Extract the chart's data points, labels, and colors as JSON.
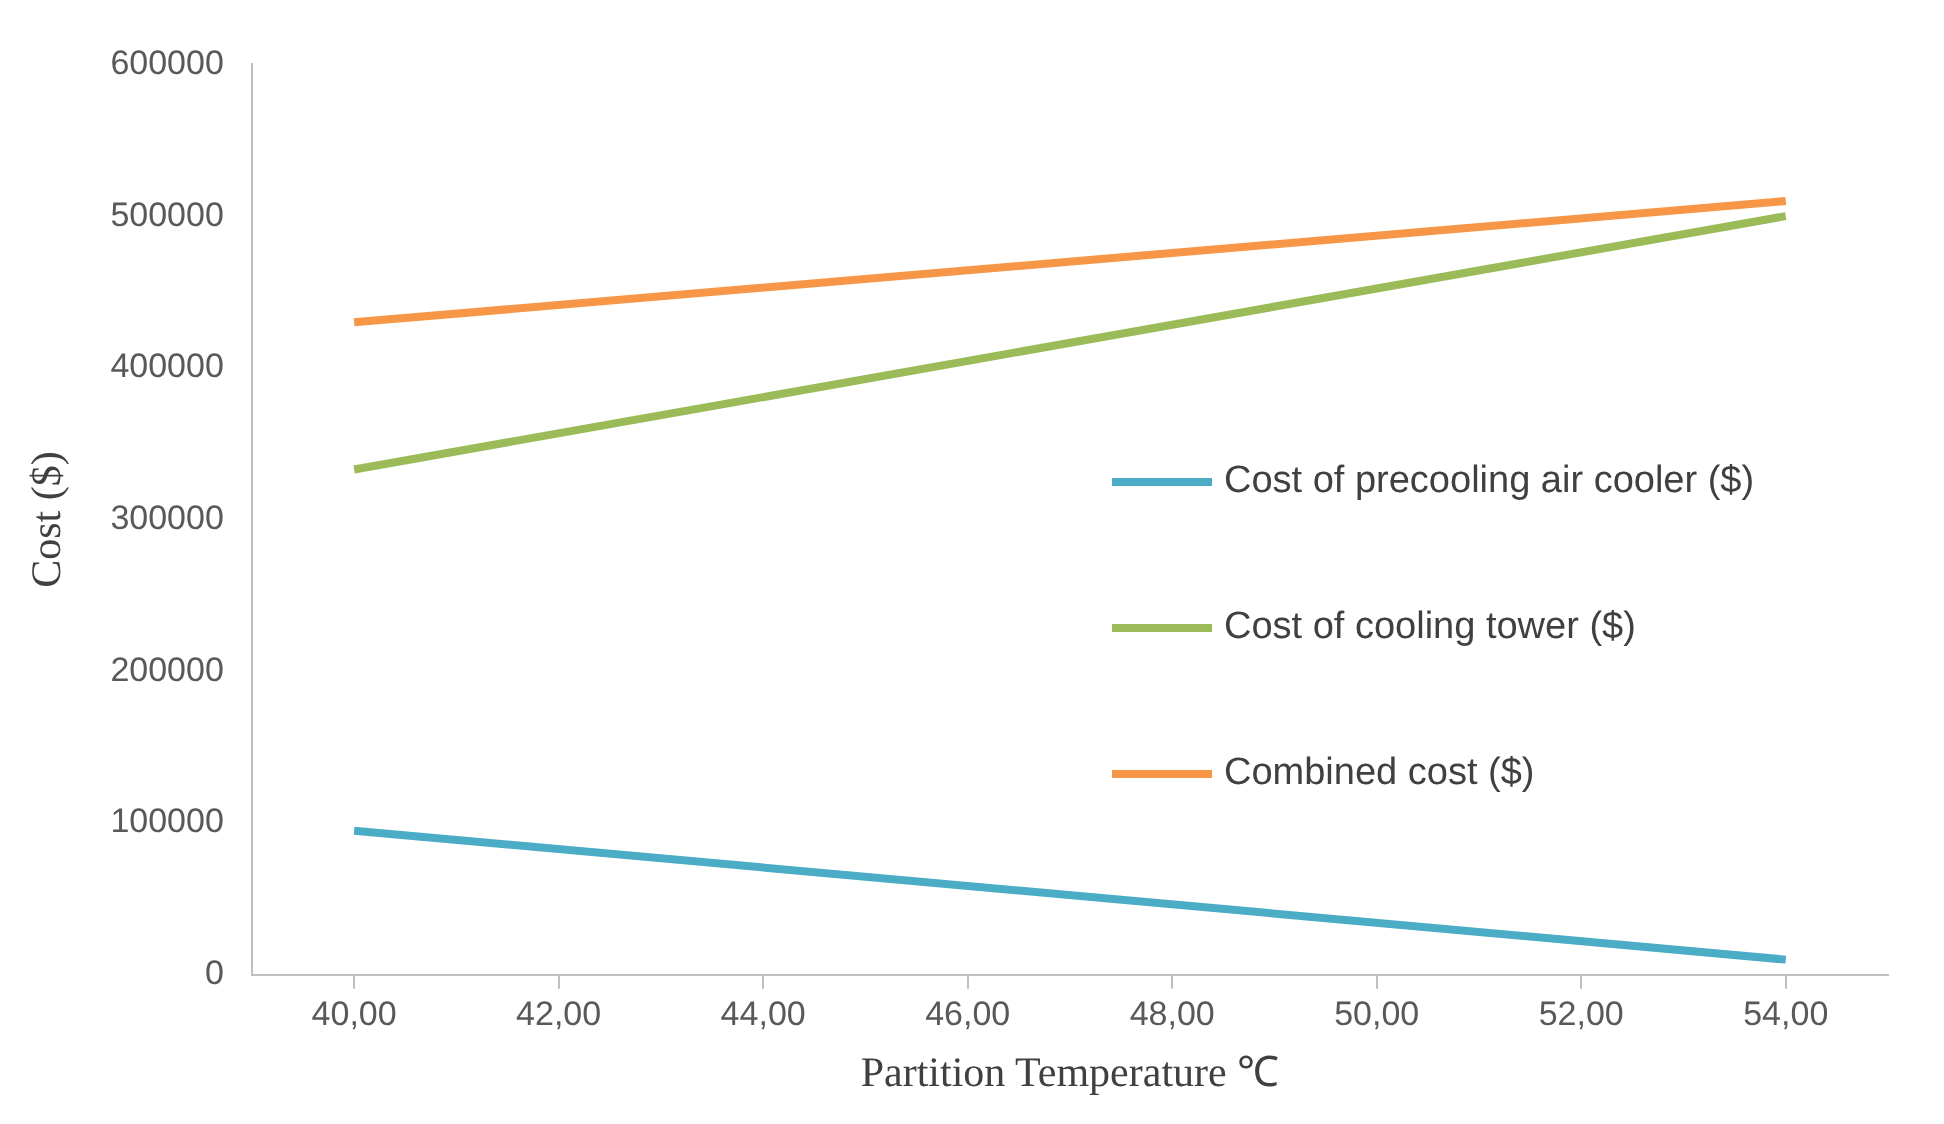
{
  "chart_data": {
    "type": "line",
    "xlabel": "Partition Temperature ℃",
    "ylabel": "Cost ($)",
    "x": [
      40,
      54
    ],
    "series": [
      {
        "name": "Cost of precooling air cooler ($)",
        "color": "#4bacc6",
        "values": [
          95000,
          10000
        ]
      },
      {
        "name": "Cost of cooling tower ($)",
        "color": "#9bbb59",
        "values": [
          333000,
          500000
        ]
      },
      {
        "name": "Combined cost ($)",
        "color": "#f79646",
        "values": [
          430000,
          510000
        ]
      }
    ],
    "xlim": [
      39,
      55
    ],
    "xticks": [
      {
        "value": 40,
        "label": "40,00"
      },
      {
        "value": 42,
        "label": "42,00"
      },
      {
        "value": 44,
        "label": "44,00"
      },
      {
        "value": 46,
        "label": "46,00"
      },
      {
        "value": 48,
        "label": "48,00"
      },
      {
        "value": 50,
        "label": "50,00"
      },
      {
        "value": 52,
        "label": "52,00"
      },
      {
        "value": 54,
        "label": "54,00"
      }
    ],
    "ylim": [
      0,
      600000
    ],
    "yticks": [
      0,
      100000,
      200000,
      300000,
      400000,
      500000,
      600000
    ],
    "grid": false,
    "legend": "right",
    "marker": "none",
    "line_style": "solid"
  }
}
